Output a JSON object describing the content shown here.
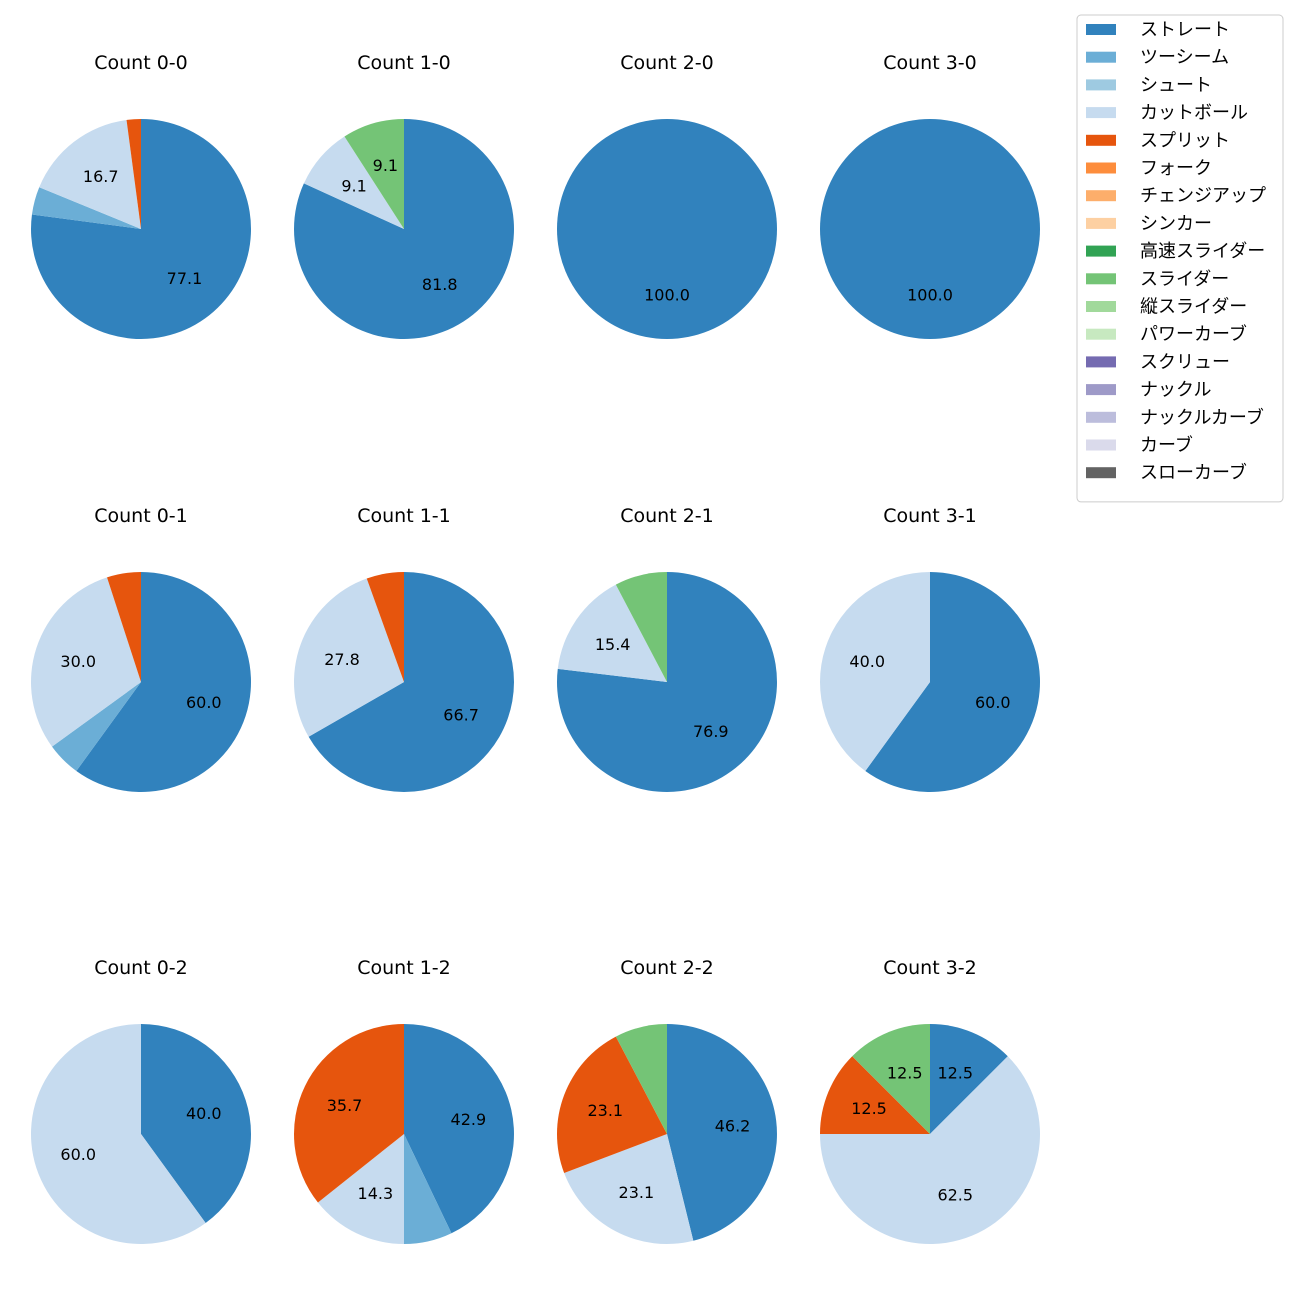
{
  "chart_data": {
    "type": "pie",
    "legend": {
      "placement": "top-right",
      "entries": [
        {
          "name": "ストレート",
          "color": "#3182bd"
        },
        {
          "name": "ツーシーム",
          "color": "#6baed6"
        },
        {
          "name": "シュート",
          "color": "#9ecae1"
        },
        {
          "name": "カットボール",
          "color": "#c6dbef"
        },
        {
          "name": "スプリット",
          "color": "#e6550d"
        },
        {
          "name": "フォーク",
          "color": "#fd8d3c"
        },
        {
          "name": "チェンジアップ",
          "color": "#fdae6b"
        },
        {
          "name": "シンカー",
          "color": "#fdd0a2"
        },
        {
          "name": "高速スライダー",
          "color": "#31a354"
        },
        {
          "name": "スライダー",
          "color": "#74c476"
        },
        {
          "name": "縦スライダー",
          "color": "#a1d99b"
        },
        {
          "name": "パワーカーブ",
          "color": "#c7e9c0"
        },
        {
          "name": "スクリュー",
          "color": "#756bb1"
        },
        {
          "name": "ナックル",
          "color": "#9e9ac8"
        },
        {
          "name": "ナックルカーブ",
          "color": "#bcbddc"
        },
        {
          "name": "カーブ",
          "color": "#dadaeb"
        },
        {
          "name": "スローカーブ",
          "color": "#636363"
        }
      ]
    },
    "pies": [
      {
        "title": "Count 0-0",
        "slices": [
          {
            "pitch": "ストレート",
            "value": 77.1,
            "label": "77.1"
          },
          {
            "pitch": "ツーシーム",
            "value": 4.1,
            "label": ""
          },
          {
            "pitch": "カットボール",
            "value": 16.7,
            "label": "16.7"
          },
          {
            "pitch": "スプリット",
            "value": 2.1,
            "label": ""
          }
        ]
      },
      {
        "title": "Count 1-0",
        "slices": [
          {
            "pitch": "ストレート",
            "value": 81.8,
            "label": "81.8"
          },
          {
            "pitch": "カットボール",
            "value": 9.1,
            "label": "9.1"
          },
          {
            "pitch": "スライダー",
            "value": 9.1,
            "label": "9.1"
          }
        ]
      },
      {
        "title": "Count 2-0",
        "slices": [
          {
            "pitch": "ストレート",
            "value": 100.0,
            "label": "100.0"
          }
        ]
      },
      {
        "title": "Count 3-0",
        "slices": [
          {
            "pitch": "ストレート",
            "value": 100.0,
            "label": "100.0"
          }
        ]
      },
      {
        "title": "Count 0-1",
        "slices": [
          {
            "pitch": "ストレート",
            "value": 60.0,
            "label": "60.0"
          },
          {
            "pitch": "ツーシーム",
            "value": 5.0,
            "label": ""
          },
          {
            "pitch": "カットボール",
            "value": 30.0,
            "label": "30.0"
          },
          {
            "pitch": "スプリット",
            "value": 5.0,
            "label": ""
          }
        ]
      },
      {
        "title": "Count 1-1",
        "slices": [
          {
            "pitch": "ストレート",
            "value": 66.7,
            "label": "66.7"
          },
          {
            "pitch": "カットボール",
            "value": 27.8,
            "label": "27.8"
          },
          {
            "pitch": "スプリット",
            "value": 5.5,
            "label": ""
          }
        ]
      },
      {
        "title": "Count 2-1",
        "slices": [
          {
            "pitch": "ストレート",
            "value": 76.9,
            "label": "76.9"
          },
          {
            "pitch": "カットボール",
            "value": 15.4,
            "label": "15.4"
          },
          {
            "pitch": "スライダー",
            "value": 7.7,
            "label": ""
          }
        ]
      },
      {
        "title": "Count 3-1",
        "slices": [
          {
            "pitch": "ストレート",
            "value": 60.0,
            "label": "60.0"
          },
          {
            "pitch": "カットボール",
            "value": 40.0,
            "label": "40.0"
          }
        ]
      },
      {
        "title": "Count 0-2",
        "slices": [
          {
            "pitch": "ストレート",
            "value": 40.0,
            "label": "40.0"
          },
          {
            "pitch": "カットボール",
            "value": 60.0,
            "label": "60.0"
          }
        ]
      },
      {
        "title": "Count 1-2",
        "slices": [
          {
            "pitch": "ストレート",
            "value": 42.9,
            "label": "42.9"
          },
          {
            "pitch": "ツーシーム",
            "value": 7.1,
            "label": ""
          },
          {
            "pitch": "カットボール",
            "value": 14.3,
            "label": "14.3"
          },
          {
            "pitch": "スプリット",
            "value": 35.7,
            "label": "35.7"
          }
        ]
      },
      {
        "title": "Count 2-2",
        "slices": [
          {
            "pitch": "ストレート",
            "value": 46.2,
            "label": "46.2"
          },
          {
            "pitch": "カットボール",
            "value": 23.1,
            "label": "23.1"
          },
          {
            "pitch": "スプリット",
            "value": 23.1,
            "label": "23.1"
          },
          {
            "pitch": "スライダー",
            "value": 7.7,
            "label": ""
          }
        ]
      },
      {
        "title": "Count 3-2",
        "slices": [
          {
            "pitch": "ストレート",
            "value": 12.5,
            "label": "12.5"
          },
          {
            "pitch": "カットボール",
            "value": 62.5,
            "label": "62.5"
          },
          {
            "pitch": "スプリット",
            "value": 12.5,
            "label": "12.5"
          },
          {
            "pitch": "スライダー",
            "value": 12.5,
            "label": "12.5"
          }
        ]
      }
    ]
  }
}
